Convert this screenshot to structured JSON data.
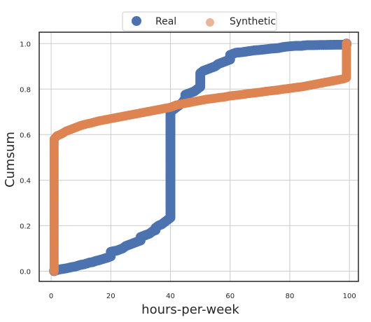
{
  "chart_data": {
    "type": "scatter",
    "title": "",
    "xlabel": "hours-per-week",
    "ylabel": "Cumsum",
    "xlim": [
      -4,
      103
    ],
    "ylim": [
      -0.045,
      1.05
    ],
    "x_ticks": [
      0,
      20,
      40,
      60,
      80,
      100
    ],
    "y_ticks": [
      0.0,
      0.2,
      0.4,
      0.6,
      0.8,
      1.0
    ],
    "x_tick_labels": [
      "0",
      "20",
      "40",
      "60",
      "80",
      "100"
    ],
    "y_tick_labels": [
      "0.0",
      "0.2",
      "0.4",
      "0.6",
      "0.8",
      "1.0"
    ],
    "grid": true,
    "legend_position": "top-center",
    "series": [
      {
        "name": "Real",
        "color": "#4c72b0",
        "points": [
          [
            1,
            0.0
          ],
          [
            1,
            0.003
          ],
          [
            2,
            0.005
          ],
          [
            3,
            0.008
          ],
          [
            4,
            0.01
          ],
          [
            5,
            0.012
          ],
          [
            6,
            0.015
          ],
          [
            7,
            0.018
          ],
          [
            8,
            0.02
          ],
          [
            9,
            0.024
          ],
          [
            10,
            0.028
          ],
          [
            11,
            0.03
          ],
          [
            12,
            0.034
          ],
          [
            13,
            0.038
          ],
          [
            14,
            0.04
          ],
          [
            15,
            0.045
          ],
          [
            16,
            0.048
          ],
          [
            17,
            0.052
          ],
          [
            18,
            0.056
          ],
          [
            19,
            0.06
          ],
          [
            20,
            0.065
          ],
          [
            20,
            0.085
          ],
          [
            21,
            0.088
          ],
          [
            22,
            0.09
          ],
          [
            23,
            0.095
          ],
          [
            24,
            0.1
          ],
          [
            25,
            0.11
          ],
          [
            26,
            0.115
          ],
          [
            27,
            0.12
          ],
          [
            28,
            0.125
          ],
          [
            29,
            0.13
          ],
          [
            30,
            0.135
          ],
          [
            30,
            0.15
          ],
          [
            31,
            0.155
          ],
          [
            32,
            0.16
          ],
          [
            33,
            0.165
          ],
          [
            34,
            0.175
          ],
          [
            35,
            0.18
          ],
          [
            35,
            0.19
          ],
          [
            36,
            0.2
          ],
          [
            37,
            0.205
          ],
          [
            38,
            0.215
          ],
          [
            39,
            0.225
          ],
          [
            40,
            0.235
          ],
          [
            40,
            0.27
          ],
          [
            40,
            0.31
          ],
          [
            40,
            0.35
          ],
          [
            40,
            0.39
          ],
          [
            40,
            0.43
          ],
          [
            40,
            0.47
          ],
          [
            40,
            0.51
          ],
          [
            40,
            0.55
          ],
          [
            40,
            0.59
          ],
          [
            40,
            0.63
          ],
          [
            40,
            0.67
          ],
          [
            40,
            0.7
          ],
          [
            41,
            0.71
          ],
          [
            42,
            0.72
          ],
          [
            43,
            0.73
          ],
          [
            44,
            0.74
          ],
          [
            45,
            0.76
          ],
          [
            45,
            0.775
          ],
          [
            46,
            0.78
          ],
          [
            47,
            0.785
          ],
          [
            48,
            0.79
          ],
          [
            49,
            0.8
          ],
          [
            50,
            0.81
          ],
          [
            50,
            0.84
          ],
          [
            50,
            0.87
          ],
          [
            51,
            0.88
          ],
          [
            52,
            0.885
          ],
          [
            53,
            0.89
          ],
          [
            54,
            0.895
          ],
          [
            55,
            0.9
          ],
          [
            56,
            0.91
          ],
          [
            57,
            0.915
          ],
          [
            58,
            0.92
          ],
          [
            59,
            0.925
          ],
          [
            60,
            0.93
          ],
          [
            60,
            0.95
          ],
          [
            61,
            0.955
          ],
          [
            62,
            0.96
          ],
          [
            64,
            0.962
          ],
          [
            66,
            0.966
          ],
          [
            68,
            0.97
          ],
          [
            70,
            0.972
          ],
          [
            72,
            0.975
          ],
          [
            74,
            0.978
          ],
          [
            76,
            0.98
          ],
          [
            78,
            0.985
          ],
          [
            80,
            0.988
          ],
          [
            82,
            0.99
          ],
          [
            84,
            0.99
          ],
          [
            85,
            0.992
          ],
          [
            86,
            0.993
          ],
          [
            88,
            0.993
          ],
          [
            90,
            0.994
          ],
          [
            92,
            0.994
          ],
          [
            95,
            0.995
          ],
          [
            99,
            0.995
          ],
          [
            99,
            0.998
          ],
          [
            99,
            1.0
          ]
        ]
      },
      {
        "name": "Synthetic",
        "color": "#dd8452",
        "points": [
          [
            1,
            0.0
          ],
          [
            1,
            0.04
          ],
          [
            1,
            0.08
          ],
          [
            1,
            0.12
          ],
          [
            1,
            0.16
          ],
          [
            1,
            0.2
          ],
          [
            1,
            0.24
          ],
          [
            1,
            0.28
          ],
          [
            1,
            0.32
          ],
          [
            1,
            0.36
          ],
          [
            1,
            0.4
          ],
          [
            1,
            0.44
          ],
          [
            1,
            0.48
          ],
          [
            1,
            0.52
          ],
          [
            1,
            0.56
          ],
          [
            1,
            0.58
          ],
          [
            2,
            0.595
          ],
          [
            3,
            0.6
          ],
          [
            4,
            0.607
          ],
          [
            5,
            0.615
          ],
          [
            6,
            0.62
          ],
          [
            7,
            0.625
          ],
          [
            8,
            0.63
          ],
          [
            9,
            0.635
          ],
          [
            10,
            0.64
          ],
          [
            12,
            0.647
          ],
          [
            14,
            0.653
          ],
          [
            16,
            0.66
          ],
          [
            18,
            0.665
          ],
          [
            20,
            0.67
          ],
          [
            22,
            0.675
          ],
          [
            24,
            0.68
          ],
          [
            26,
            0.685
          ],
          [
            28,
            0.69
          ],
          [
            30,
            0.695
          ],
          [
            32,
            0.7
          ],
          [
            34,
            0.705
          ],
          [
            36,
            0.71
          ],
          [
            38,
            0.715
          ],
          [
            40,
            0.72
          ],
          [
            42,
            0.73
          ],
          [
            44,
            0.735
          ],
          [
            46,
            0.74
          ],
          [
            48,
            0.745
          ],
          [
            50,
            0.75
          ],
          [
            52,
            0.755
          ],
          [
            54,
            0.758
          ],
          [
            56,
            0.762
          ],
          [
            58,
            0.765
          ],
          [
            60,
            0.77
          ],
          [
            62,
            0.773
          ],
          [
            64,
            0.776
          ],
          [
            66,
            0.78
          ],
          [
            68,
            0.783
          ],
          [
            70,
            0.786
          ],
          [
            72,
            0.79
          ],
          [
            74,
            0.793
          ],
          [
            76,
            0.796
          ],
          [
            78,
            0.8
          ],
          [
            80,
            0.803
          ],
          [
            82,
            0.807
          ],
          [
            84,
            0.81
          ],
          [
            86,
            0.815
          ],
          [
            88,
            0.82
          ],
          [
            90,
            0.825
          ],
          [
            92,
            0.83
          ],
          [
            94,
            0.835
          ],
          [
            96,
            0.84
          ],
          [
            98,
            0.845
          ],
          [
            99,
            0.85
          ],
          [
            99,
            0.88
          ],
          [
            99,
            0.91
          ],
          [
            99,
            0.94
          ],
          [
            99,
            0.97
          ],
          [
            99,
            1.0
          ]
        ]
      }
    ]
  }
}
